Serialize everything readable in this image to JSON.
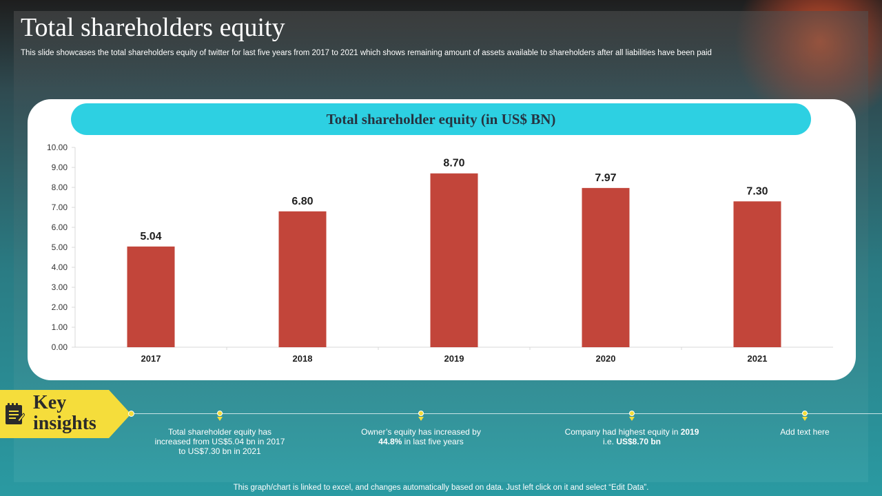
{
  "title": "Total shareholders equity",
  "subtitle": "This slide showcases the total shareholders equity of twitter for last five years from 2017 to 2021 which shows remaining amount of assets available to shareholders after all liabilities have been paid",
  "chart_header": "Total shareholder equity (in US$ BN)",
  "key_insights": {
    "line1": "Key",
    "line2": "insights"
  },
  "insights": [
    {
      "plain": "Total shareholder equity has increased from US$5.04 bn in 2017 to US$7.30 bn in 2021"
    },
    {
      "before": "Owner’s equity has increased by ",
      "bold": "44.8%",
      "after": " in last five years"
    },
    {
      "before": "Company had highest equity in ",
      "bold": "2019",
      "mid": " i.e. ",
      "bold2": "US$8.70 bn"
    },
    {
      "plain": "Add text here"
    }
  ],
  "footer": "This graph/chart is linked to excel, and changes automatically based on data. Just left click on it and select “Edit Data”.",
  "colors": {
    "bar": "#c2453a",
    "header_bg": "#2dd0e2",
    "badge": "#f5dd3b"
  },
  "icons": {
    "key_insights": "notepad-icon"
  },
  "chart_data": {
    "type": "bar",
    "title": "Total shareholder equity (in US$ BN)",
    "categories": [
      "2017",
      "2018",
      "2019",
      "2020",
      "2021"
    ],
    "values": [
      5.04,
      6.8,
      8.7,
      7.97,
      7.3
    ],
    "value_labels": [
      "5.04",
      "6.80",
      "8.70",
      "7.97",
      "7.30"
    ],
    "ylim": [
      0,
      10
    ],
    "yticks": [
      "0.00",
      "1.00",
      "2.00",
      "3.00",
      "4.00",
      "5.00",
      "6.00",
      "7.00",
      "8.00",
      "9.00",
      "10.00"
    ],
    "grid": false,
    "legend": "none"
  }
}
